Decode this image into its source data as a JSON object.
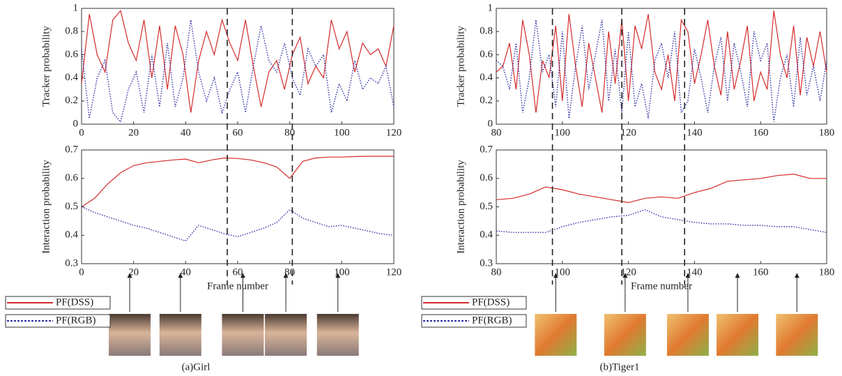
{
  "chart_data": [
    {
      "type": "line",
      "ylabel": "Tracker probability",
      "x": [
        0,
        3,
        6,
        9,
        12,
        15,
        18,
        21,
        24,
        27,
        30,
        33,
        36,
        39,
        42,
        45,
        48,
        51,
        54,
        57,
        60,
        63,
        66,
        69,
        72,
        75,
        78,
        81,
        84,
        87,
        90,
        93,
        96,
        99,
        102,
        105,
        108,
        111,
        114,
        117,
        120
      ],
      "series": [
        {
          "name": "PF(DSS)",
          "color": "#d42a2a",
          "linestyle": "solid",
          "values": [
            0.35,
            0.95,
            0.6,
            0.45,
            0.9,
            0.98,
            0.7,
            0.55,
            0.9,
            0.4,
            0.85,
            0.3,
            0.85,
            0.6,
            0.1,
            0.55,
            0.8,
            0.6,
            0.9,
            0.7,
            0.55,
            0.9,
            0.5,
            0.15,
            0.45,
            0.55,
            0.3,
            0.6,
            0.75,
            0.35,
            0.5,
            0.4,
            0.9,
            0.65,
            0.8,
            0.45,
            0.7,
            0.6,
            0.65,
            0.5,
            0.85
          ]
        },
        {
          "name": "PF(RGB)",
          "color": "#2b2ba6",
          "linestyle": "dotted",
          "values": [
            0.65,
            0.05,
            0.4,
            0.55,
            0.1,
            0.02,
            0.3,
            0.45,
            0.1,
            0.6,
            0.15,
            0.7,
            0.15,
            0.4,
            0.9,
            0.45,
            0.2,
            0.4,
            0.1,
            0.3,
            0.45,
            0.1,
            0.5,
            0.85,
            0.55,
            0.45,
            0.7,
            0.4,
            0.25,
            0.65,
            0.5,
            0.6,
            0.1,
            0.35,
            0.2,
            0.55,
            0.3,
            0.4,
            0.35,
            0.5,
            0.15
          ]
        }
      ],
      "xlim": [
        0,
        120
      ],
      "ylim": [
        0,
        1
      ],
      "xticks": [
        0,
        20,
        40,
        60,
        80,
        100,
        120
      ],
      "yticks": [
        0,
        0.2,
        0.4,
        0.6,
        0.8,
        1
      ]
    },
    {
      "type": "line",
      "ylabel": "Interaction probability",
      "xlabel": "Frame number",
      "caption": "(a)Girl",
      "x": [
        0,
        5,
        10,
        15,
        20,
        25,
        30,
        35,
        40,
        45,
        50,
        55,
        60,
        65,
        70,
        75,
        80,
        85,
        90,
        95,
        100,
        105,
        110,
        115,
        120
      ],
      "series": [
        {
          "name": "PF(DSS)",
          "color": "#d42a2a",
          "linestyle": "solid",
          "values": [
            0.5,
            0.53,
            0.58,
            0.62,
            0.645,
            0.655,
            0.66,
            0.665,
            0.668,
            0.655,
            0.665,
            0.672,
            0.67,
            0.665,
            0.655,
            0.64,
            0.6,
            0.66,
            0.672,
            0.675,
            0.675,
            0.677,
            0.678,
            0.678,
            0.678
          ]
        },
        {
          "name": "PF(RGB)",
          "color": "#2b2ba6",
          "linestyle": "dotted",
          "values": [
            0.5,
            0.48,
            0.465,
            0.45,
            0.435,
            0.425,
            0.41,
            0.395,
            0.38,
            0.435,
            0.42,
            0.405,
            0.395,
            0.41,
            0.425,
            0.445,
            0.49,
            0.46,
            0.445,
            0.43,
            0.435,
            0.425,
            0.415,
            0.405,
            0.4
          ]
        }
      ],
      "xlim": [
        0,
        120
      ],
      "ylim": [
        0.3,
        0.7
      ],
      "xticks": [
        0,
        20,
        40,
        60,
        80,
        100,
        120
      ],
      "yticks": [
        0.3,
        0.4,
        0.5,
        0.6,
        0.7
      ],
      "markers_x": [
        56,
        81
      ],
      "arrow_x": [
        18.5,
        38,
        62,
        78.5,
        98.5
      ]
    },
    {
      "type": "line",
      "ylabel": "Tracker probability",
      "x": [
        80,
        82,
        84,
        86,
        88,
        90,
        92,
        94,
        96,
        98,
        100,
        102,
        104,
        106,
        108,
        110,
        112,
        114,
        116,
        118,
        120,
        122,
        124,
        126,
        128,
        130,
        132,
        134,
        136,
        138,
        140,
        142,
        144,
        146,
        148,
        150,
        152,
        154,
        156,
        158,
        160,
        162,
        164,
        166,
        168,
        170,
        172,
        174,
        176,
        178,
        180
      ],
      "series": [
        {
          "name": "PF(DSS)",
          "color": "#d42a2a",
          "linestyle": "solid",
          "values": [
            0.45,
            0.5,
            0.7,
            0.3,
            0.9,
            0.6,
            0.1,
            0.55,
            0.4,
            0.85,
            0.2,
            0.95,
            0.5,
            0.15,
            0.7,
            0.4,
            0.1,
            0.8,
            0.35,
            0.9,
            0.2,
            0.85,
            0.65,
            0.95,
            0.45,
            0.3,
            0.6,
            0.2,
            0.9,
            0.8,
            0.35,
            0.6,
            0.9,
            0.5,
            0.25,
            0.8,
            0.3,
            0.55,
            0.85,
            0.2,
            0.45,
            0.3,
            0.98,
            0.6,
            0.4,
            0.85,
            0.25,
            0.75,
            0.5,
            0.8,
            0.45
          ]
        },
        {
          "name": "PF(RGB)",
          "color": "#2b2ba6",
          "linestyle": "dotted",
          "values": [
            0.55,
            0.5,
            0.3,
            0.7,
            0.1,
            0.4,
            0.9,
            0.45,
            0.6,
            0.15,
            0.8,
            0.05,
            0.5,
            0.85,
            0.3,
            0.6,
            0.9,
            0.2,
            0.65,
            0.1,
            0.8,
            0.15,
            0.35,
            0.05,
            0.55,
            0.7,
            0.4,
            0.8,
            0.1,
            0.2,
            0.65,
            0.4,
            0.1,
            0.5,
            0.75,
            0.2,
            0.7,
            0.45,
            0.15,
            0.8,
            0.55,
            0.7,
            0.02,
            0.4,
            0.6,
            0.15,
            0.75,
            0.25,
            0.5,
            0.2,
            0.55
          ]
        }
      ],
      "xlim": [
        80,
        180
      ],
      "ylim": [
        0,
        1
      ],
      "xticks": [
        80,
        100,
        120,
        140,
        160,
        180
      ],
      "yticks": [
        0,
        0.2,
        0.4,
        0.6,
        0.8,
        1
      ]
    },
    {
      "type": "line",
      "ylabel": "Interaction probability",
      "xlabel": "Frame number",
      "caption": "(b)Tiger1",
      "x": [
        80,
        85,
        90,
        95,
        100,
        105,
        110,
        115,
        120,
        125,
        130,
        135,
        140,
        145,
        150,
        155,
        160,
        165,
        170,
        175,
        180
      ],
      "series": [
        {
          "name": "PF(DSS)",
          "color": "#d42a2a",
          "linestyle": "solid",
          "values": [
            0.525,
            0.53,
            0.545,
            0.57,
            0.56,
            0.545,
            0.535,
            0.525,
            0.515,
            0.53,
            0.535,
            0.53,
            0.55,
            0.565,
            0.59,
            0.595,
            0.6,
            0.61,
            0.615,
            0.6,
            0.6
          ]
        },
        {
          "name": "PF(RGB)",
          "color": "#2b2ba6",
          "linestyle": "dotted",
          "values": [
            0.415,
            0.41,
            0.41,
            0.41,
            0.43,
            0.445,
            0.455,
            0.465,
            0.47,
            0.49,
            0.465,
            0.455,
            0.445,
            0.44,
            0.44,
            0.435,
            0.435,
            0.43,
            0.43,
            0.42,
            0.41
          ]
        }
      ],
      "xlim": [
        80,
        180
      ],
      "ylim": [
        0.3,
        0.7
      ],
      "xticks": [
        80,
        100,
        120,
        140,
        160,
        180
      ],
      "yticks": [
        0.3,
        0.4,
        0.5,
        0.6,
        0.7
      ],
      "markers_x": [
        97,
        118,
        137
      ],
      "arrow_x": [
        98,
        119,
        138,
        153,
        171
      ]
    }
  ]
}
